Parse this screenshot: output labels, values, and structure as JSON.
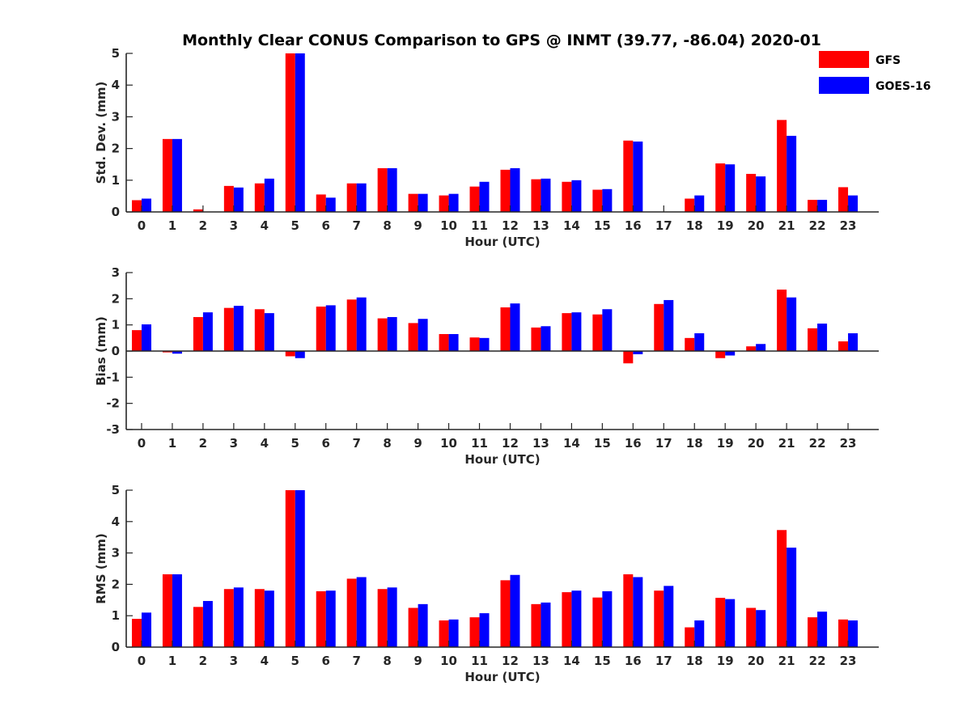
{
  "figure": {
    "title": "Monthly Clear CONUS Comparison to GPS @ INMT (39.77, -86.04) 2020-01"
  },
  "legend": {
    "placement": "top-right",
    "items": [
      {
        "name": "GFS",
        "color": "#ff0000"
      },
      {
        "name": "GOES-16",
        "color": "#0000ff"
      }
    ]
  },
  "chart_data": [
    {
      "type": "bar",
      "xlabel": "Hour (UTC)",
      "ylabel": "Std. Dev. (mm)",
      "ylim": [
        0,
        5
      ],
      "yticks": [
        0,
        1,
        2,
        3,
        4,
        5
      ],
      "categories": [
        "0",
        "1",
        "2",
        "3",
        "4",
        "5",
        "6",
        "7",
        "8",
        "9",
        "10",
        "11",
        "12",
        "13",
        "14",
        "15",
        "16",
        "17",
        "18",
        "19",
        "20",
        "21",
        "22",
        "23"
      ],
      "series": [
        {
          "name": "GFS",
          "color": "#ff0000",
          "values": [
            0.37,
            2.3,
            0.08,
            0.82,
            0.9,
            5.0,
            0.55,
            0.9,
            1.38,
            0.57,
            0.52,
            0.8,
            1.33,
            1.03,
            0.95,
            0.7,
            2.25,
            null,
            0.42,
            1.53,
            1.2,
            2.9,
            0.38,
            0.78
          ]
        },
        {
          "name": "GOES-16",
          "color": "#0000ff",
          "values": [
            0.42,
            2.3,
            null,
            0.77,
            1.05,
            5.0,
            0.45,
            0.9,
            1.38,
            0.57,
            0.57,
            0.95,
            1.38,
            1.05,
            1.0,
            0.72,
            2.22,
            null,
            0.52,
            1.5,
            1.12,
            2.4,
            0.38,
            0.52
          ]
        }
      ]
    },
    {
      "type": "bar",
      "xlabel": "Hour (UTC)",
      "ylabel": "Bias (mm)",
      "ylim": [
        -3,
        3
      ],
      "yticks": [
        -3,
        -2,
        -1,
        0,
        1,
        2,
        3
      ],
      "categories": [
        "0",
        "1",
        "2",
        "3",
        "4",
        "5",
        "6",
        "7",
        "8",
        "9",
        "10",
        "11",
        "12",
        "13",
        "14",
        "15",
        "16",
        "17",
        "18",
        "19",
        "20",
        "21",
        "22",
        "23"
      ],
      "series": [
        {
          "name": "GFS",
          "color": "#ff0000",
          "values": [
            0.8,
            -0.05,
            1.3,
            1.65,
            1.6,
            -0.2,
            1.7,
            1.97,
            1.25,
            1.07,
            0.65,
            0.52,
            1.67,
            0.9,
            1.45,
            1.4,
            -0.47,
            1.8,
            0.5,
            -0.27,
            0.18,
            2.35,
            0.87,
            0.37
          ]
        },
        {
          "name": "GOES-16",
          "color": "#0000ff",
          "values": [
            1.02,
            -0.1,
            1.48,
            1.73,
            1.45,
            -0.27,
            1.75,
            2.05,
            1.3,
            1.23,
            0.65,
            0.5,
            1.82,
            0.95,
            1.48,
            1.6,
            -0.12,
            1.95,
            0.68,
            -0.17,
            0.27,
            2.05,
            1.05,
            0.68
          ]
        }
      ]
    },
    {
      "type": "bar",
      "xlabel": "Hour (UTC)",
      "ylabel": "RMS (mm)",
      "ylim": [
        0,
        5
      ],
      "yticks": [
        0,
        1,
        2,
        3,
        4,
        5
      ],
      "categories": [
        "0",
        "1",
        "2",
        "3",
        "4",
        "5",
        "6",
        "7",
        "8",
        "9",
        "10",
        "11",
        "12",
        "13",
        "14",
        "15",
        "16",
        "17",
        "18",
        "19",
        "20",
        "21",
        "22",
        "23"
      ],
      "series": [
        {
          "name": "GFS",
          "color": "#ff0000",
          "values": [
            0.9,
            2.32,
            1.28,
            1.85,
            1.85,
            5.0,
            1.78,
            2.18,
            1.85,
            1.25,
            0.85,
            0.95,
            2.13,
            1.37,
            1.75,
            1.58,
            2.32,
            1.8,
            0.63,
            1.57,
            1.25,
            3.73,
            0.95,
            0.88
          ]
        },
        {
          "name": "GOES-16",
          "color": "#0000ff",
          "values": [
            1.1,
            2.32,
            1.47,
            1.9,
            1.8,
            5.0,
            1.8,
            2.23,
            1.9,
            1.37,
            0.88,
            1.08,
            2.3,
            1.42,
            1.8,
            1.78,
            2.23,
            1.95,
            0.85,
            1.53,
            1.18,
            3.17,
            1.13,
            0.85
          ]
        }
      ]
    }
  ]
}
